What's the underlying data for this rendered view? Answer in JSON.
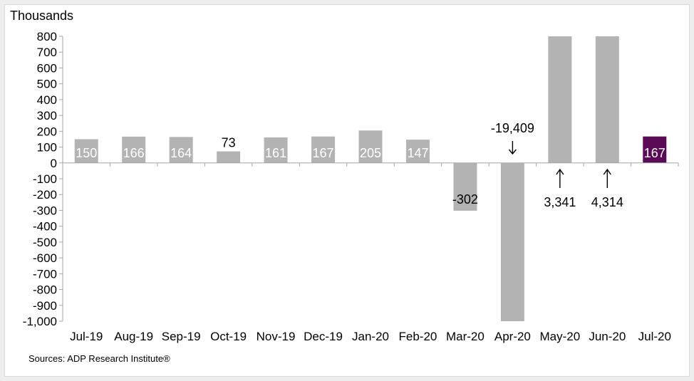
{
  "chart_data": {
    "type": "bar",
    "ylabel": "Thousands",
    "categories": [
      "Jul-19",
      "Aug-19",
      "Sep-19",
      "Oct-19",
      "Nov-19",
      "Dec-19",
      "Jan-20",
      "Feb-20",
      "Mar-20",
      "Apr-20",
      "May-20",
      "Jun-20",
      "Jul-20"
    ],
    "values": [
      150,
      166,
      164,
      73,
      161,
      167,
      205,
      147,
      -302,
      -19409,
      3341,
      4314,
      167
    ],
    "data_labels": [
      "150",
      "166",
      "164",
      "73",
      "161",
      "167",
      "205",
      "147",
      "-302",
      "-19,409",
      "3,341",
      "4,314",
      "167"
    ],
    "ylim": [
      -1000,
      800
    ],
    "yticks": [
      800,
      700,
      600,
      500,
      400,
      300,
      200,
      100,
      0,
      -100,
      -200,
      -300,
      -400,
      -500,
      -600,
      -700,
      -800,
      -900,
      -1000
    ],
    "ytick_labels": [
      "800",
      "700",
      "600",
      "500",
      "400",
      "300",
      "200",
      "100",
      "0",
      "-100",
      "-200",
      "-300",
      "-400",
      "-500",
      "-600",
      "-700",
      "-800",
      "-900",
      "-1,000"
    ],
    "grid": false,
    "colors": {
      "bar": "#b3b3b3",
      "highlight": "#5b0a55",
      "axis": "#a6a6a6"
    },
    "highlight_index": 12,
    "clipped_indices": [
      9,
      10,
      11
    ]
  },
  "source_note": "Sources: ADP Research Institute®"
}
